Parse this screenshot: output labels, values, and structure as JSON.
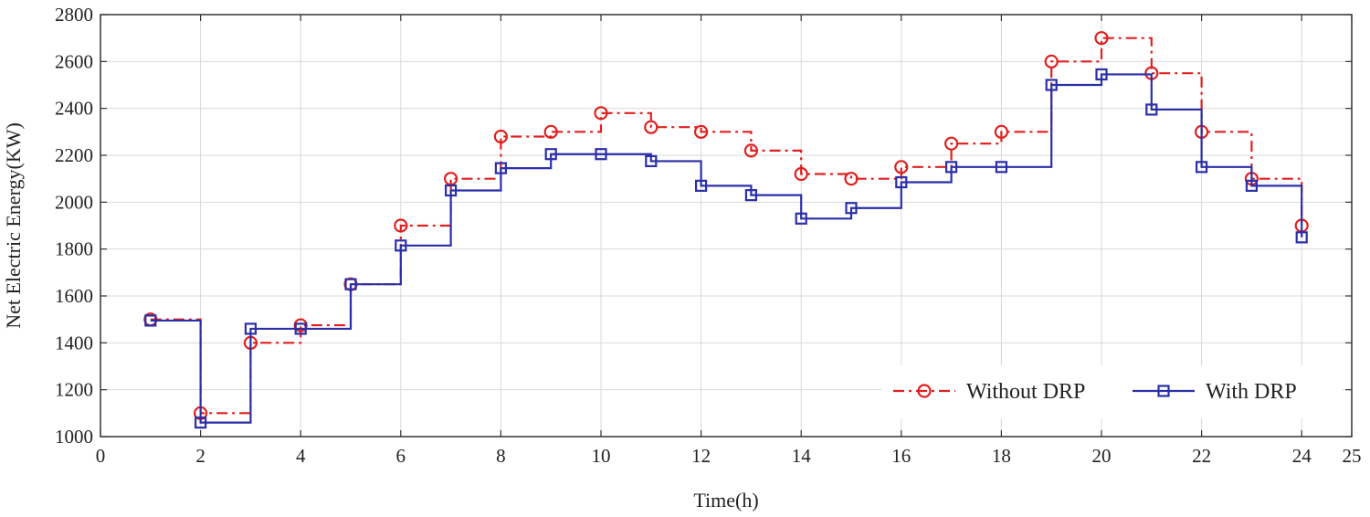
{
  "chart_data": {
    "type": "line",
    "title": "",
    "xlabel": "Time(h)",
    "ylabel": "Net Electric Energy(KW)",
    "xlim": [
      0,
      25
    ],
    "ylim": [
      1000,
      2800
    ],
    "xticks": [
      0,
      2,
      4,
      6,
      8,
      10,
      12,
      14,
      16,
      18,
      20,
      22,
      24,
      25
    ],
    "yticks": [
      1000,
      1200,
      1400,
      1600,
      1800,
      2000,
      2200,
      2400,
      2600,
      2800
    ],
    "grid": true,
    "legend_position": "bottom-right",
    "x": [
      1,
      2,
      3,
      4,
      5,
      6,
      7,
      8,
      9,
      10,
      11,
      12,
      13,
      14,
      15,
      16,
      17,
      18,
      19,
      20,
      21,
      22,
      23,
      24
    ],
    "series": [
      {
        "name": "Without DRP",
        "color": "#e0201e",
        "line_style": "dash-dot",
        "marker": "circle",
        "values": [
          1500,
          1100,
          1400,
          1475,
          1650,
          1900,
          2100,
          2280,
          2300,
          2380,
          2320,
          2300,
          2220,
          2120,
          2100,
          2150,
          2250,
          2300,
          2600,
          2700,
          2550,
          2300,
          2100,
          1900
        ]
      },
      {
        "name": "With DRP",
        "color": "#2b2fa8",
        "line_style": "solid",
        "marker": "square",
        "values": [
          1495,
          1060,
          1460,
          1460,
          1650,
          1815,
          2050,
          2145,
          2205,
          2205,
          2175,
          2070,
          2030,
          1930,
          1975,
          2085,
          2150,
          2150,
          2500,
          2545,
          2395,
          2150,
          2070,
          1850
        ]
      }
    ]
  }
}
